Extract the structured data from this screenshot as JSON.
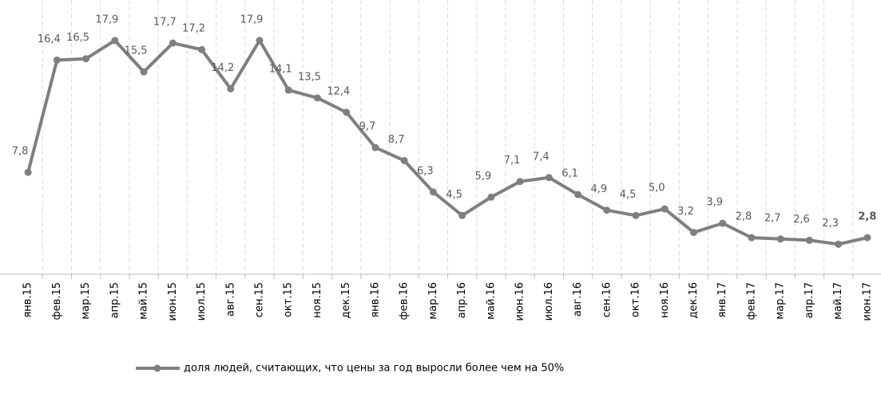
{
  "chart_data": {
    "type": "line",
    "categories": [
      "янв.15",
      "фев.15",
      "мар.15",
      "апр.15",
      "май.15",
      "июн.15",
      "июл.15",
      "авг.15",
      "сен.15",
      "окт.15",
      "ноя.15",
      "дек.15",
      "янв.16",
      "фев.16",
      "мар.16",
      "апр.16",
      "май.16",
      "июн.16",
      "июл.16",
      "авг.16",
      "сен.16",
      "окт.16",
      "ноя.16",
      "дек.16",
      "янв.17",
      "фев.17",
      "мар.17",
      "апр.17",
      "май.17",
      "июн.17"
    ],
    "series": [
      {
        "name": "доля людей, считающих, что цены за год выросли более чем на 50%",
        "color": "#7f7f7f",
        "values": [
          7.8,
          16.4,
          16.5,
          17.9,
          15.5,
          17.7,
          17.2,
          14.2,
          17.9,
          14.1,
          13.5,
          12.4,
          9.7,
          8.7,
          6.3,
          4.5,
          5.9,
          7.1,
          7.4,
          6.1,
          4.9,
          4.5,
          5.0,
          3.2,
          3.9,
          2.8,
          2.7,
          2.6,
          2.3,
          2.8
        ],
        "value_labels": [
          "7,8",
          "16,4",
          "16,5",
          "17,9",
          "15,5",
          "17,7",
          "17,2",
          "14,2",
          "17,9",
          "14,1",
          "13,5",
          "12,4",
          "9,7",
          "8,7",
          "6,3",
          "4,5",
          "5,9",
          "7,1",
          "7,4",
          "6,1",
          "4,9",
          "4,5",
          "5,0",
          "3,2",
          "3,9",
          "2,8",
          "2,7",
          "2,6",
          "2,3",
          "2,8"
        ]
      }
    ],
    "ylim": [
      0,
      21
    ],
    "legend": "bottom"
  }
}
